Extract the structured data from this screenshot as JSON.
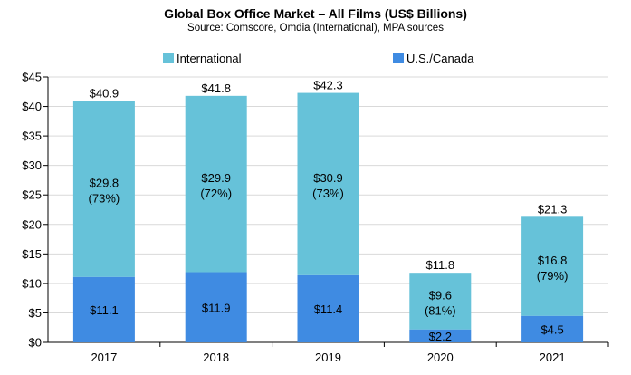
{
  "chart_data": {
    "type": "bar",
    "stacked": true,
    "title": "Global Box Office Market – All Films (US$ Billions)",
    "subtitle": "Source: Comscore, Omdia (International), MPA sources",
    "categories": [
      "2017",
      "2018",
      "2019",
      "2020",
      "2021"
    ],
    "series": [
      {
        "name": "U.S./Canada",
        "color": "#3f8be2",
        "values": [
          11.1,
          11.9,
          11.4,
          2.2,
          4.5
        ],
        "labels": [
          "$11.1",
          "$11.9",
          "$11.4",
          "$2.2",
          "$4.5"
        ]
      },
      {
        "name": "International",
        "color": "#66c2d9",
        "values": [
          29.8,
          29.9,
          30.9,
          9.6,
          16.8
        ],
        "labels": [
          "$29.8",
          "$29.9",
          "$30.9",
          "$9.6",
          "$16.8"
        ],
        "share_labels": [
          "(73%)",
          "(72%)",
          "(73%)",
          "(81%)",
          "(79%)"
        ]
      }
    ],
    "totals": [
      40.9,
      41.8,
      42.3,
      11.8,
      21.3
    ],
    "total_labels": [
      "$40.9",
      "$41.8",
      "$42.3",
      "$11.8",
      "$21.3"
    ],
    "ylim": [
      0,
      45
    ],
    "yticks": [
      0,
      5,
      10,
      15,
      20,
      25,
      30,
      35,
      40,
      45
    ],
    "ytick_labels": [
      "$0",
      "$5",
      "$10",
      "$15",
      "$20",
      "$25",
      "$30",
      "$35",
      "$40",
      "$45"
    ],
    "xlabel": "",
    "ylabel": "",
    "grid": true,
    "legend": {
      "placement": "top",
      "order": [
        "International",
        "U.S./Canada"
      ]
    }
  }
}
